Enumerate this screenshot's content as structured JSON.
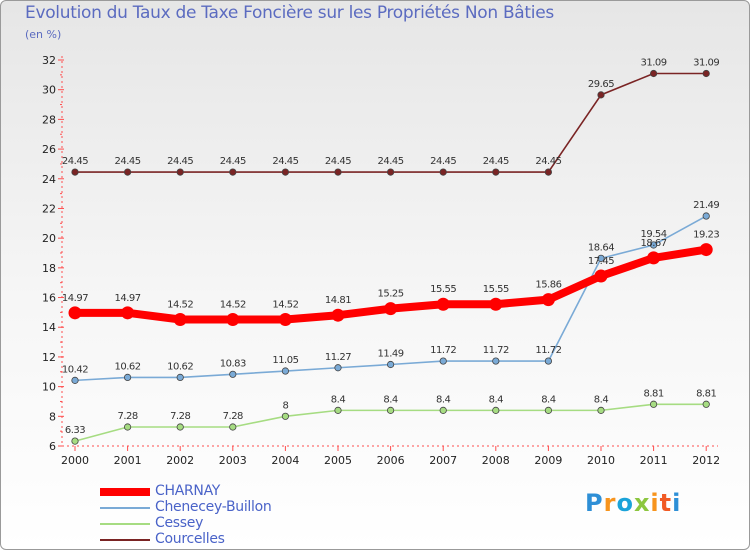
{
  "chart_data": {
    "type": "line",
    "title": "Evolution du Taux de Taxe Foncière sur les Propriétés Non Bâties",
    "ylabel": "(en %)",
    "xlabel": "",
    "categories": [
      "2000",
      "2001",
      "2002",
      "2003",
      "2004",
      "2005",
      "2006",
      "2007",
      "2008",
      "2009",
      "2010",
      "2011",
      "2012"
    ],
    "ylim": [
      6,
      32
    ],
    "yticks": [
      6,
      8,
      10,
      12,
      14,
      16,
      18,
      20,
      22,
      24,
      26,
      28,
      30,
      32
    ],
    "series": [
      {
        "name": "Courcelles",
        "color": "#7a2424",
        "values": [
          24.45,
          24.45,
          24.45,
          24.45,
          24.45,
          24.45,
          24.45,
          24.45,
          24.45,
          24.45,
          29.65,
          31.09,
          31.09
        ],
        "labels": [
          "24.45",
          "24.45",
          "24.45",
          "24.45",
          "24.45",
          "24.45",
          "24.45",
          "24.45",
          "24.45",
          "24.45",
          "29.65",
          "31.09",
          "31.09"
        ]
      },
      {
        "name": "Chenecey-Buillon",
        "color": "#7aaad6",
        "values": [
          10.42,
          10.62,
          10.62,
          10.83,
          11.05,
          11.27,
          11.49,
          11.72,
          11.72,
          11.72,
          18.64,
          19.54,
          21.49
        ],
        "labels": [
          "10.42",
          "10.62",
          "10.62",
          "10.83",
          "11.05",
          "11.27",
          "11.49",
          "11.72",
          "11.72",
          "11.72",
          "18.64",
          "19.54",
          "21.49"
        ]
      },
      {
        "name": "Cessey",
        "color": "#a6dc82",
        "values": [
          6.33,
          7.28,
          7.28,
          7.28,
          8,
          8.4,
          8.4,
          8.4,
          8.4,
          8.4,
          8.4,
          8.81,
          8.81
        ],
        "labels": [
          "6.33",
          "7.28",
          "7.28",
          "7.28",
          "8",
          "8.4",
          "8.4",
          "8.4",
          "8.4",
          "8.4",
          "8.4",
          "8.81",
          "8.81"
        ]
      },
      {
        "name": "CHARNAY",
        "color": "#ff0000",
        "values": [
          14.97,
          14.97,
          14.52,
          14.52,
          14.52,
          14.81,
          15.25,
          15.55,
          15.55,
          15.86,
          17.45,
          18.67,
          19.23
        ],
        "labels": [
          "14.97",
          "14.97",
          "14.52",
          "14.52",
          "14.52",
          "14.81",
          "15.25",
          "15.55",
          "15.55",
          "15.86",
          "17.45",
          "18.67",
          "19.23"
        ]
      }
    ],
    "legend_order": [
      "CHARNAY",
      "Chenecey-Buillon",
      "Cessey",
      "Courcelles"
    ]
  },
  "logo": {
    "letters": [
      "P",
      "r",
      "o",
      "x",
      "i",
      "t",
      "i"
    ],
    "colors": [
      "#2e8fd6",
      "#f7941d",
      "#1aa3d9",
      "#8cc63f",
      "#f7941d",
      "#f15a24",
      "#2e8fd6"
    ]
  }
}
